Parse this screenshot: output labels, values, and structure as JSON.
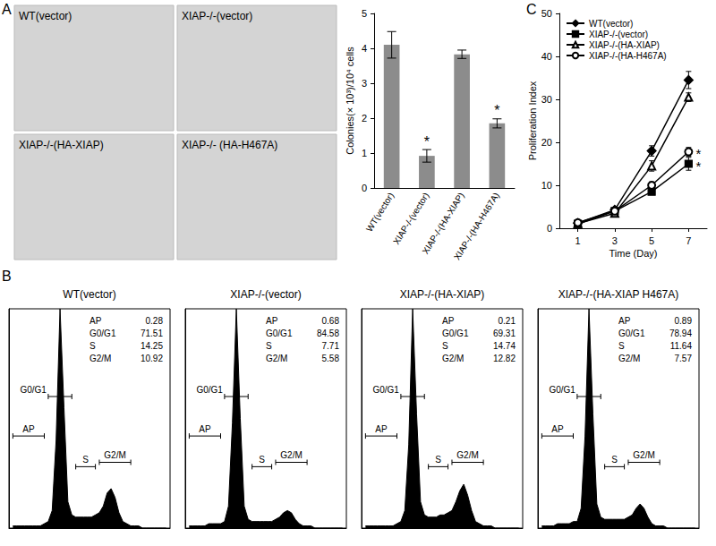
{
  "panels": [
    "A",
    "B",
    "C"
  ],
  "images": [
    "WT(vector)",
    "XIAP-/-(vector)",
    "XIAP-/-(HA-XIAP)",
    "XIAP-/- (HA-H467A)"
  ],
  "chart_data": [
    {
      "type": "bar",
      "ylabel": "Colonies(× 10³)/10⁴ cells",
      "categories": [
        "WT(vector)",
        "XIAP-/-(vector)",
        "XIAP-/-(HA-XIAP)",
        "XIAP-/-(HA-H467A)"
      ],
      "values": [
        4.1,
        0.92,
        3.83,
        1.85
      ],
      "errors": [
        0.38,
        0.18,
        0.12,
        0.13
      ],
      "annotations": [
        null,
        "*",
        null,
        "*"
      ],
      "color": "#8c8c8c",
      "ylim": [
        0,
        5
      ],
      "yticks": [
        0,
        1,
        2,
        3,
        4,
        5
      ],
      "grid": false
    },
    {
      "type": "line",
      "xlabel": "Time (Day)",
      "ylabel": "Proliferation Index",
      "x": [
        1,
        3,
        5,
        7
      ],
      "xlim": [
        0,
        8
      ],
      "xticks": [
        1,
        3,
        5,
        7
      ],
      "ylim": [
        0,
        50
      ],
      "yticks": [
        0,
        10,
        20,
        30,
        40,
        50
      ],
      "grid": false,
      "legend": "upper left",
      "series": [
        {
          "name": "WT(vector)",
          "color": "#000000",
          "marker": "diamond",
          "line_style": "solid",
          "values": [
            1.2,
            4.3,
            18,
            34.5
          ],
          "errors": [
            0.3,
            0.5,
            1.2,
            2
          ],
          "annotations": [
            null,
            null,
            null,
            null
          ]
        },
        {
          "name": "XIAP-/-(vector)",
          "color": "#000000",
          "marker": "square",
          "line_style": "solid",
          "values": [
            1.0,
            4.0,
            8.5,
            15
          ],
          "errors": [
            0.2,
            0.4,
            0.6,
            1.5
          ],
          "annotations": [
            null,
            null,
            null,
            "*"
          ]
        },
        {
          "name": "XIAP-/-(HA-XIAP)",
          "color": "#000000",
          "marker": "open-triangle",
          "line_style": "solid",
          "values": [
            1.1,
            3.5,
            14.5,
            30.5
          ],
          "errors": [
            0.3,
            0.5,
            1.2,
            1
          ],
          "annotations": [
            null,
            null,
            null,
            null
          ]
        },
        {
          "name": "XIAP-/-(HA-H467A)",
          "color": "#000000",
          "marker": "open-circle",
          "line_style": "solid",
          "values": [
            1.3,
            4.0,
            10,
            17.8
          ],
          "errors": [
            0.2,
            0.4,
            0.8,
            1
          ],
          "annotations": [
            null,
            null,
            null,
            "*"
          ]
        }
      ]
    },
    {
      "type": "area",
      "title": "WT(vector)",
      "color": "#000000",
      "tick_labels": false,
      "xlim": [
        0,
        41
      ],
      "ylim": [
        0,
        100
      ],
      "x": [
        1,
        2,
        3,
        4,
        5,
        6,
        7,
        8,
        9,
        10,
        11,
        12,
        13,
        14,
        15,
        16,
        17,
        18,
        19,
        20,
        21,
        22,
        23,
        24,
        25,
        26,
        27,
        28,
        29,
        30,
        31,
        32,
        33,
        34,
        35,
        36,
        37,
        38,
        39,
        40
      ],
      "values": [
        1,
        1,
        1,
        1,
        1,
        1,
        1,
        1,
        2,
        3,
        8,
        40,
        100,
        55,
        12,
        6,
        5,
        5,
        5,
        5,
        5,
        6,
        7,
        10,
        16,
        18,
        14,
        7,
        3,
        2,
        1,
        1,
        1,
        0,
        0,
        0,
        0,
        0,
        0,
        0
      ],
      "gates": [
        {
          "label": "AP",
          "range": [
            1,
            9
          ]
        },
        {
          "label": "G0/G1",
          "range": [
            10,
            16
          ]
        },
        {
          "label": "S",
          "range": [
            17,
            22
          ]
        },
        {
          "label": "G2/M",
          "range": [
            23,
            31
          ]
        }
      ],
      "stats": [
        {
          "label": "AP",
          "value": 0.28
        },
        {
          "label": "G0/G1",
          "value": 71.51
        },
        {
          "label": "S",
          "value": 14.25
        },
        {
          "label": "G2/M",
          "value": 10.92
        }
      ]
    },
    {
      "type": "area",
      "title": "XIAP-/-(vector)",
      "color": "#000000",
      "tick_labels": false,
      "xlim": [
        0,
        41
      ],
      "ylim": [
        0,
        100
      ],
      "x": [
        1,
        2,
        3,
        4,
        5,
        6,
        7,
        8,
        9,
        10,
        11,
        12,
        13,
        14,
        15,
        16,
        17,
        18,
        19,
        20,
        21,
        22,
        23,
        24,
        25,
        26,
        27,
        28,
        29,
        30,
        31,
        32,
        33,
        34,
        35,
        36,
        37,
        38,
        39,
        40
      ],
      "values": [
        1,
        1,
        1,
        1,
        1,
        2,
        2,
        2,
        2,
        3,
        10,
        48,
        100,
        50,
        10,
        4,
        3,
        3,
        3,
        3,
        3,
        3,
        4,
        5,
        7,
        8,
        7,
        4,
        2,
        1,
        1,
        1,
        0,
        0,
        0,
        0,
        0,
        0,
        0,
        0
      ],
      "gates": [
        {
          "label": "AP",
          "range": [
            1,
            9
          ]
        },
        {
          "label": "G0/G1",
          "range": [
            10,
            16
          ]
        },
        {
          "label": "S",
          "range": [
            17,
            22
          ]
        },
        {
          "label": "G2/M",
          "range": [
            23,
            31
          ]
        }
      ],
      "stats": [
        {
          "label": "AP",
          "value": 0.68
        },
        {
          "label": "G0/G1",
          "value": 84.58
        },
        {
          "label": "S",
          "value": 7.71
        },
        {
          "label": "G2/M",
          "value": 5.58
        }
      ]
    },
    {
      "type": "area",
      "title": "XIAP-/-(HA-XIAP)",
      "color": "#000000",
      "tick_labels": false,
      "xlim": [
        0,
        41
      ],
      "ylim": [
        0,
        100
      ],
      "x": [
        1,
        2,
        3,
        4,
        5,
        6,
        7,
        8,
        9,
        10,
        11,
        12,
        13,
        14,
        15,
        16,
        17,
        18,
        19,
        20,
        21,
        22,
        23,
        24,
        25,
        26,
        27,
        28,
        29,
        30,
        31,
        32,
        33,
        34,
        35,
        36,
        37,
        38,
        39,
        40
      ],
      "values": [
        1,
        1,
        1,
        1,
        1,
        1,
        1,
        1,
        2,
        3,
        8,
        38,
        100,
        52,
        12,
        6,
        5,
        5,
        5,
        6,
        6,
        7,
        8,
        12,
        17,
        20,
        15,
        8,
        3,
        2,
        1,
        1,
        1,
        0,
        0,
        0,
        0,
        0,
        0,
        0
      ],
      "gates": [
        {
          "label": "AP",
          "range": [
            1,
            9
          ]
        },
        {
          "label": "G0/G1",
          "range": [
            10,
            16
          ]
        },
        {
          "label": "S",
          "range": [
            17,
            22
          ]
        },
        {
          "label": "G2/M",
          "range": [
            23,
            31
          ]
        }
      ],
      "stats": [
        {
          "label": "AP",
          "value": 0.21
        },
        {
          "label": "G0/G1",
          "value": 69.31
        },
        {
          "label": "S",
          "value": 14.74
        },
        {
          "label": "G2/M",
          "value": 12.82
        }
      ]
    },
    {
      "type": "area",
      "title": "XIAP-/-(HA-XIAP H467A)",
      "color": "#000000",
      "tick_labels": false,
      "xlim": [
        0,
        41
      ],
      "ylim": [
        0,
        100
      ],
      "x": [
        1,
        2,
        3,
        4,
        5,
        6,
        7,
        8,
        9,
        10,
        11,
        12,
        13,
        14,
        15,
        16,
        17,
        18,
        19,
        20,
        21,
        22,
        23,
        24,
        25,
        26,
        27,
        28,
        29,
        30,
        31,
        32,
        33,
        34,
        35,
        36,
        37,
        38,
        39,
        40
      ],
      "values": [
        1,
        1,
        1,
        1,
        2,
        2,
        2,
        2,
        3,
        3,
        9,
        42,
        100,
        52,
        11,
        5,
        4,
        4,
        4,
        4,
        4,
        4,
        5,
        6,
        9,
        11,
        9,
        5,
        2,
        1,
        1,
        1,
        0,
        0,
        0,
        0,
        0,
        0,
        0,
        0
      ],
      "gates": [
        {
          "label": "AP",
          "range": [
            1,
            9
          ]
        },
        {
          "label": "G0/G1",
          "range": [
            10,
            16
          ]
        },
        {
          "label": "S",
          "range": [
            17,
            22
          ]
        },
        {
          "label": "G2/M",
          "range": [
            23,
            31
          ]
        }
      ],
      "stats": [
        {
          "label": "AP",
          "value": 0.89
        },
        {
          "label": "G0/G1",
          "value": 78.94
        },
        {
          "label": "S",
          "value": 11.64
        },
        {
          "label": "G2/M",
          "value": 7.57
        }
      ]
    }
  ]
}
